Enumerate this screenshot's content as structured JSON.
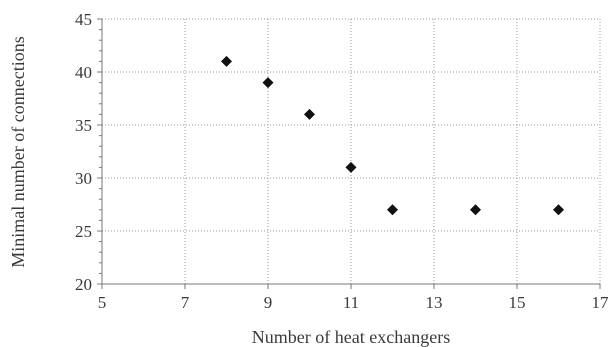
{
  "chart_data": {
    "type": "scatter",
    "xlabel": "Number of heat exchangers",
    "ylabel": "Minimal number of connections",
    "xlim": [
      5,
      17
    ],
    "ylim": [
      20,
      45
    ],
    "x_ticks": [
      "5",
      "7",
      "9",
      "11",
      "13",
      "15",
      "17"
    ],
    "y_ticks": [
      "20",
      "25",
      "30",
      "35",
      "40",
      "45"
    ],
    "grid": true,
    "marker": "diamond",
    "marker_color": "#111111",
    "series": [
      {
        "points": [
          {
            "x": 8,
            "y": 41
          },
          {
            "x": 9,
            "y": 39
          },
          {
            "x": 10,
            "y": 36
          },
          {
            "x": 11,
            "y": 31
          },
          {
            "x": 12,
            "y": 27
          },
          {
            "x": 14,
            "y": 27
          },
          {
            "x": 16,
            "y": 27
          }
        ]
      }
    ]
  }
}
